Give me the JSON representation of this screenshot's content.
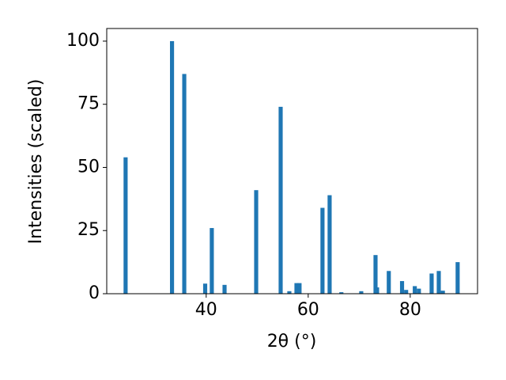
{
  "chart_data": {
    "type": "bar",
    "x": [
      24.2,
      33.3,
      35.7,
      39.8,
      41.1,
      43.6,
      49.8,
      54.6,
      56.3,
      57.7,
      58.3,
      62.8,
      64.2,
      66.5,
      70.4,
      73.2,
      73.5,
      75.8,
      78.4,
      79.2,
      80.9,
      81.7,
      84.2,
      85.6,
      86.4,
      89.3
    ],
    "values": [
      54,
      100,
      87,
      4,
      26,
      3.5,
      41,
      74,
      1,
      4.2,
      4.2,
      34,
      39,
      0.6,
      1,
      15.3,
      2.5,
      9,
      5,
      1.5,
      3,
      2,
      8,
      9,
      1.2,
      12.5
    ],
    "color": "#1f77b4",
    "xlabel": "2θ (°)",
    "ylabel": "Intensities (scaled)",
    "xlim": [
      20.5,
      93.2
    ],
    "ylim": [
      0,
      105
    ],
    "xticks": [
      40,
      60,
      80
    ],
    "yticks": [
      0,
      25,
      50,
      75,
      100
    ],
    "grid": false
  }
}
